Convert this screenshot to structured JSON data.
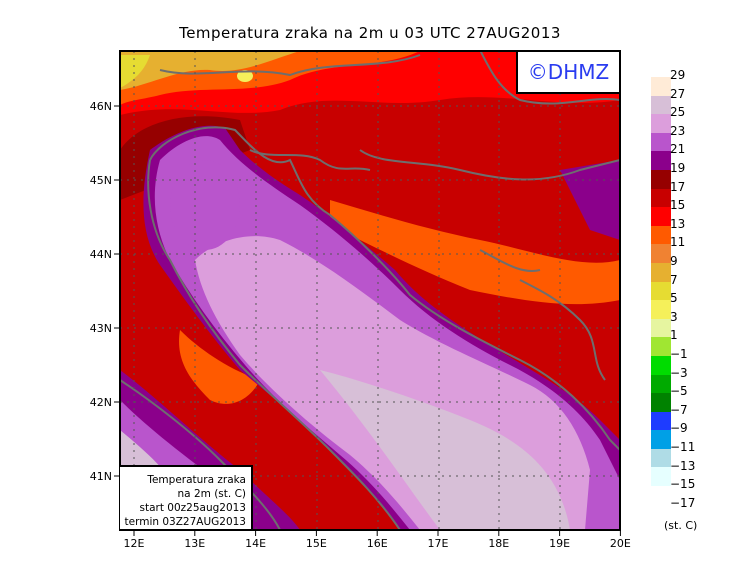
{
  "title": "Temperatura zraka na 2m u 03 UTC 27AUG2013",
  "logo": "©DHMZ",
  "info_box": [
    "Temperatura zraka",
    "na 2m (st. C)",
    "start 00z25aug2013",
    "termin 03Z27AUG2013"
  ],
  "lon_ticks": [
    "12E",
    "13E",
    "14E",
    "15E",
    "16E",
    "17E",
    "18E",
    "19E",
    "20E"
  ],
  "lat_ticks": [
    "46N",
    "45N",
    "44N",
    "43N",
    "42N",
    "41N"
  ],
  "colorbar": {
    "labels": [
      "29",
      "27",
      "25",
      "23",
      "21",
      "19",
      "17",
      "15",
      "13",
      "11",
      "9",
      "7",
      "5",
      "3",
      "1",
      "−1",
      "−3",
      "−5",
      "−7",
      "−9",
      "−11",
      "−13",
      "−15",
      "−17"
    ],
    "colors": [
      "#ffebd7",
      "#d7bfd7",
      "#dc9edc",
      "#b955cc",
      "#8b008b",
      "#960000",
      "#c80000",
      "#ff0000",
      "#ff5a00",
      "#f08232",
      "#e6b030",
      "#e6dc32",
      "#f5f05a",
      "#e6f5a0",
      "#a0e632",
      "#00dc00",
      "#00aa00",
      "#008200",
      "#1e3cff",
      "#00a0e6",
      "#afdce6",
      "#e6ffff"
    ],
    "units": "(st. C)"
  }
}
